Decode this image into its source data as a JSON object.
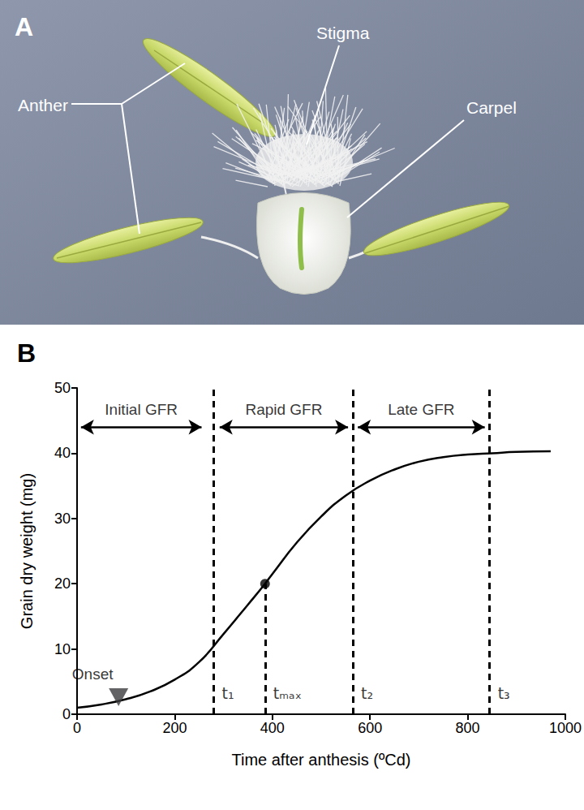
{
  "photo_panel": {
    "letter": "A",
    "labels": [
      "Anther",
      "Stigma",
      "Carpel"
    ]
  },
  "chart_data": {
    "type": "line",
    "title": "B",
    "x_label": "Time after anthesis (ºCd)",
    "y_label": "Grain dry weight (mg)",
    "x": [
      0,
      50,
      100,
      150,
      200,
      250,
      300,
      350,
      385,
      400,
      450,
      500,
      550,
      600,
      650,
      700,
      750,
      800,
      850,
      900,
      970
    ],
    "values": [
      1.0,
      1.5,
      2.3,
      3.5,
      5.3,
      8.0,
      12.3,
      16.8,
      20.0,
      21.5,
      26.3,
      30.3,
      33.5,
      35.8,
      37.5,
      38.7,
      39.4,
      39.8,
      40.0,
      40.2,
      40.3
    ],
    "color": "#000000",
    "xlim": [
      0,
      1000
    ],
    "xticks": [
      0,
      200,
      400,
      600,
      800,
      1000
    ],
    "ylim": [
      0,
      50
    ],
    "yticks": [
      0,
      10,
      20,
      30,
      40,
      50
    ],
    "grid": false,
    "max_point": {
      "x": 385,
      "y": 20
    },
    "time_lines": [
      {
        "label": "t₁",
        "x": 280,
        "top": 50
      },
      {
        "label": "tₘₐₓ",
        "x": 385,
        "top": 20
      },
      {
        "label": "t₂",
        "x": 565,
        "top": 50
      },
      {
        "label": "t₃",
        "x": 845,
        "top": 50
      }
    ],
    "phases": [
      {
        "label": "Initial GFR",
        "start": 8,
        "end": 255,
        "y": 44
      },
      {
        "label": "Rapid GFR",
        "start": 292,
        "end": 555,
        "y": 44
      },
      {
        "label": "Late GFR",
        "start": 575,
        "end": 835,
        "y": 44
      }
    ],
    "onset": {
      "label": "Onset",
      "x": 85,
      "y": 2.6
    }
  }
}
